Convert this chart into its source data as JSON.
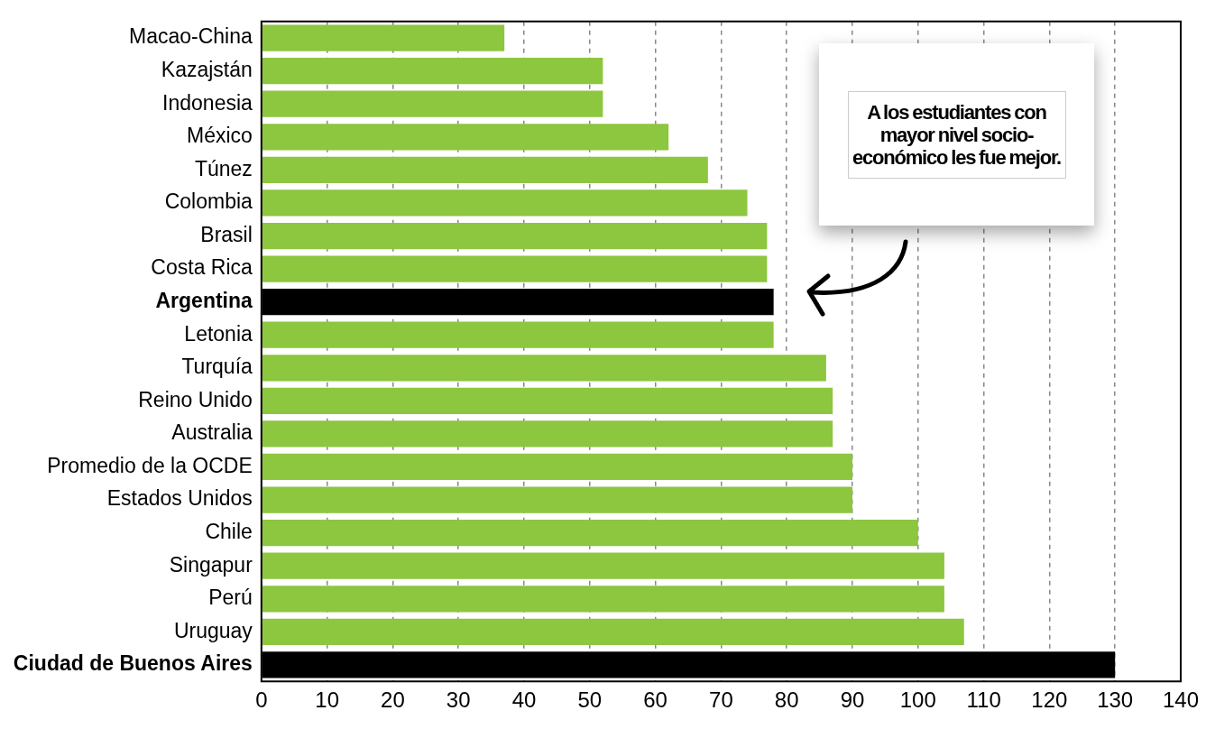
{
  "chart_data": {
    "type": "bar",
    "orientation": "horizontal",
    "categories": [
      "Macao-China",
      "Kazajstán",
      "Indonesia",
      "México",
      "Túnez",
      "Colombia",
      "Brasil",
      "Costa Rica",
      "Argentina",
      "Letonia",
      "Turquía",
      "Reino Unido",
      "Australia",
      "Promedio de la OCDE",
      "Estados Unidos",
      "Chile",
      "Singapur",
      "Perú",
      "Uruguay",
      "Ciudad de Buenos Aires"
    ],
    "values": [
      37,
      52,
      52,
      62,
      68,
      74,
      77,
      77,
      78,
      78,
      86,
      87,
      87,
      90,
      90,
      100,
      104,
      104,
      107,
      130
    ],
    "colors": [
      "#8dc63f",
      "#8dc63f",
      "#8dc63f",
      "#8dc63f",
      "#8dc63f",
      "#8dc63f",
      "#8dc63f",
      "#8dc63f",
      "#000000",
      "#8dc63f",
      "#8dc63f",
      "#8dc63f",
      "#8dc63f",
      "#8dc63f",
      "#8dc63f",
      "#8dc63f",
      "#8dc63f",
      "#8dc63f",
      "#8dc63f",
      "#000000"
    ],
    "xlim": [
      0,
      140
    ],
    "xticks": [
      0,
      10,
      20,
      30,
      40,
      50,
      60,
      70,
      80,
      90,
      100,
      110,
      120,
      130,
      140
    ],
    "grid": "x",
    "legend": false,
    "annotations": [
      "A los estudiantes con mayor nivel socio-económico les fue mejor."
    ]
  }
}
